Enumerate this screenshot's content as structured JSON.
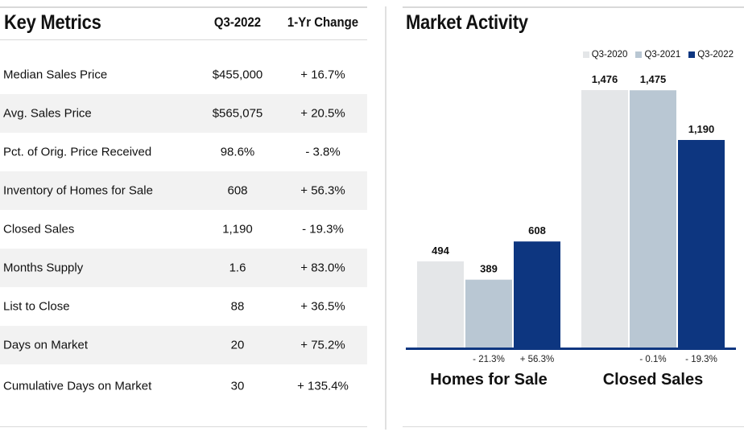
{
  "metrics": {
    "title": "Key Metrics",
    "col_value": "Q3-2022",
    "col_change": "1-Yr Change",
    "rows": [
      {
        "label": "Median Sales Price",
        "value": "$455,000",
        "change": "+ 16.7%"
      },
      {
        "label": "Avg. Sales Price",
        "value": "$565,075",
        "change": "+ 20.5%"
      },
      {
        "label": "Pct. of Orig. Price Received",
        "value": "98.6%",
        "change": "- 3.8%"
      },
      {
        "label": "Inventory of Homes for Sale",
        "value": "608",
        "change": "+ 56.3%"
      },
      {
        "label": "Closed Sales",
        "value": "1,190",
        "change": "- 19.3%"
      },
      {
        "label": "Months Supply",
        "value": "1.6",
        "change": "+ 83.0%"
      },
      {
        "label": "List to Close",
        "value": "88",
        "change": "+ 36.5%"
      },
      {
        "label": "Days on Market",
        "value": "20",
        "change": "+ 75.2%"
      },
      {
        "label": "Cumulative Days on Market",
        "value": "30",
        "change": "+ 135.4%"
      }
    ]
  },
  "chart_data": {
    "type": "bar",
    "title": "Market Activity",
    "categories": [
      "Homes for Sale",
      "Closed Sales"
    ],
    "series": [
      {
        "name": "Q3-2020",
        "color": "#e4e6e8",
        "values": [
          494,
          1476
        ],
        "labels": [
          "494",
          "1,476"
        ]
      },
      {
        "name": "Q3-2021",
        "color": "#b9c7d3",
        "values": [
          389,
          1475
        ],
        "labels": [
          "389",
          "1,475"
        ]
      },
      {
        "name": "Q3-2022",
        "color": "#0d3680",
        "values": [
          608,
          1190
        ],
        "labels": [
          "608",
          "1,190"
        ]
      }
    ],
    "changes": [
      [
        "- 21.3%",
        "+ 56.3%"
      ],
      [
        "- 0.1%",
        "- 19.3%"
      ]
    ],
    "ylim": [
      0,
      1476
    ],
    "legend_position": "top-right",
    "grid": false
  }
}
